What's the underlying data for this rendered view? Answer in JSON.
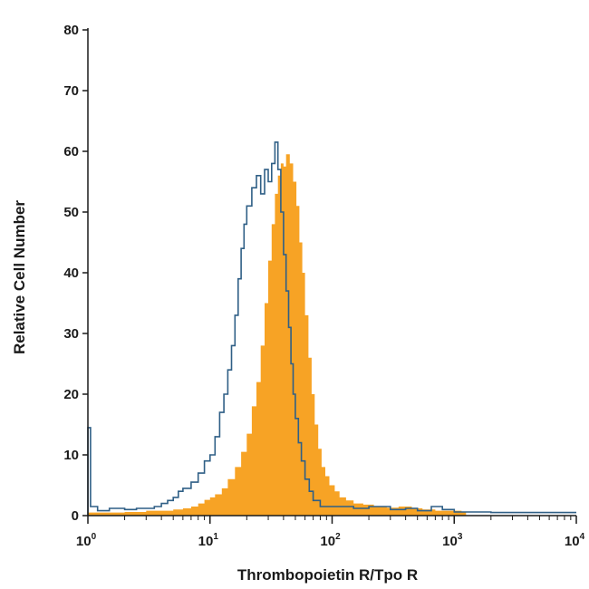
{
  "chart_data": {
    "type": "area",
    "title": "",
    "xlabel": "Thrombopoietin R/Tpo R",
    "ylabel": "Relative Cell Number",
    "x_scale": "log",
    "xlim": [
      1,
      10000
    ],
    "ylim": [
      0,
      80
    ],
    "x_ticks": [
      {
        "value": 1,
        "base": "10",
        "exp": "0"
      },
      {
        "value": 10,
        "base": "10",
        "exp": "1"
      },
      {
        "value": 100,
        "base": "10",
        "exp": "2"
      },
      {
        "value": 1000,
        "base": "10",
        "exp": "3"
      },
      {
        "value": 10000,
        "base": "10",
        "exp": "4"
      }
    ],
    "y_ticks": [
      "0",
      "10",
      "20",
      "30",
      "40",
      "50",
      "60",
      "70",
      "80"
    ],
    "grid": false,
    "legend": "none",
    "series": [
      {
        "style": "filled",
        "color": "#f7a325",
        "points": [
          [
            1.0,
            0.5
          ],
          [
            2.0,
            0.6
          ],
          [
            3.0,
            0.8
          ],
          [
            4.0,
            0.8
          ],
          [
            5.0,
            1.0
          ],
          [
            6.0,
            1.2
          ],
          [
            7.0,
            1.5
          ],
          [
            8.0,
            2.0
          ],
          [
            9.0,
            2.6
          ],
          [
            10.0,
            3.0
          ],
          [
            11.0,
            3.5
          ],
          [
            12.5,
            4.5
          ],
          [
            14.0,
            6.0
          ],
          [
            16.0,
            8.0
          ],
          [
            18.0,
            10.5
          ],
          [
            20.0,
            13.5
          ],
          [
            22.0,
            18.0
          ],
          [
            24.0,
            22.0
          ],
          [
            26.0,
            28.0
          ],
          [
            28.0,
            35.0
          ],
          [
            30.0,
            42.0
          ],
          [
            32.0,
            48.0
          ],
          [
            34.0,
            53.0
          ],
          [
            36.0,
            56.0
          ],
          [
            38.0,
            58.0
          ],
          [
            40.0,
            57.5
          ],
          [
            42.0,
            59.5
          ],
          [
            45.0,
            58.0
          ],
          [
            48.0,
            55.0
          ],
          [
            51.0,
            51.0
          ],
          [
            54.0,
            45.0
          ],
          [
            57.0,
            40.0
          ],
          [
            60.0,
            33.0
          ],
          [
            64.0,
            26.0
          ],
          [
            68.0,
            20.0
          ],
          [
            72.0,
            15.0
          ],
          [
            77.0,
            11.0
          ],
          [
            82.0,
            8.0
          ],
          [
            88.0,
            6.5
          ],
          [
            95.0,
            5.0
          ],
          [
            105.0,
            4.0
          ],
          [
            115.0,
            3.0
          ],
          [
            130.0,
            2.5
          ],
          [
            150.0,
            2.0
          ],
          [
            180.0,
            1.8
          ],
          [
            220.0,
            1.5
          ],
          [
            280.0,
            1.3
          ],
          [
            350.0,
            1.5
          ],
          [
            450.0,
            1.2
          ],
          [
            550.0,
            1.0
          ],
          [
            700.0,
            0.8
          ],
          [
            900.0,
            0.8
          ],
          [
            1150.0,
            0.6
          ],
          [
            1250.0,
            0.0
          ]
        ]
      },
      {
        "style": "outline",
        "color": "#2f5f86",
        "points": [
          [
            1.0,
            14.5
          ],
          [
            1.05,
            1.5
          ],
          [
            1.2,
            0.8
          ],
          [
            1.5,
            1.2
          ],
          [
            2.0,
            1.0
          ],
          [
            2.5,
            1.2
          ],
          [
            3.0,
            1.2
          ],
          [
            3.5,
            1.5
          ],
          [
            4.0,
            2.0
          ],
          [
            4.5,
            2.5
          ],
          [
            5.0,
            3.0
          ],
          [
            5.5,
            4.0
          ],
          [
            6.0,
            4.5
          ],
          [
            7.0,
            5.5
          ],
          [
            8.0,
            7.0
          ],
          [
            9.0,
            9.0
          ],
          [
            10.0,
            10.0
          ],
          [
            11.0,
            13.0
          ],
          [
            12.0,
            17.0
          ],
          [
            13.0,
            20.0
          ],
          [
            14.0,
            24.0
          ],
          [
            15.0,
            28.0
          ],
          [
            16.0,
            33.0
          ],
          [
            17.0,
            39.0
          ],
          [
            18.0,
            44.0
          ],
          [
            19.0,
            48.0
          ],
          [
            20.0,
            51.0
          ],
          [
            22.0,
            54.0
          ],
          [
            24.0,
            56.0
          ],
          [
            26.0,
            53.0
          ],
          [
            28.0,
            57.0
          ],
          [
            30.0,
            55.0
          ],
          [
            32.0,
            58.0
          ],
          [
            34.0,
            61.5
          ],
          [
            36.0,
            57.0
          ],
          [
            38.0,
            50.0
          ],
          [
            40.0,
            43.0
          ],
          [
            42.0,
            37.0
          ],
          [
            44.0,
            31.0
          ],
          [
            46.0,
            25.0
          ],
          [
            48.0,
            20.0
          ],
          [
            50.0,
            16.0
          ],
          [
            53.0,
            12.0
          ],
          [
            56.0,
            9.0
          ],
          [
            60.0,
            6.0
          ],
          [
            65.0,
            4.0
          ],
          [
            70.0,
            2.5
          ],
          [
            80.0,
            1.5
          ],
          [
            100.0,
            1.5
          ],
          [
            150.0,
            1.2
          ],
          [
            200.0,
            1.5
          ],
          [
            300.0,
            1.0
          ],
          [
            400.0,
            1.2
          ],
          [
            500.0,
            0.8
          ],
          [
            650.0,
            1.5
          ],
          [
            800.0,
            1.0
          ],
          [
            1000.0,
            0.6
          ],
          [
            2000.0,
            0.5
          ],
          [
            5000.0,
            0.5
          ],
          [
            10000.0,
            0.5
          ]
        ]
      }
    ]
  }
}
